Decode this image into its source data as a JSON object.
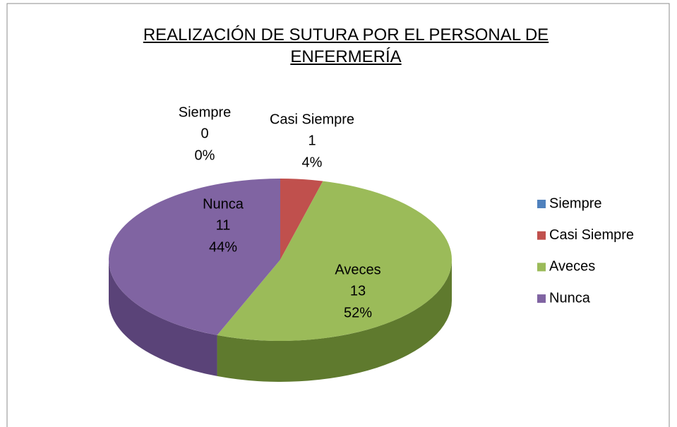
{
  "chart_data": {
    "type": "pie",
    "title": "REALIZACIÓN DE SUTURA POR EL PERSONAL DE ENFERMERÍA",
    "categories": [
      "Siempre",
      "Casi Siempre",
      "Aveces",
      "Nunca"
    ],
    "values": [
      0,
      1,
      13,
      11
    ],
    "percent_labels": [
      "0%",
      "4%",
      "52%",
      "44%"
    ],
    "colors": [
      "#4f81bd",
      "#c0504d",
      "#9bbb59",
      "#8064a2"
    ],
    "side_colors": [
      "#3a6190",
      "#8f3b39",
      "#5f7a2e",
      "#5a4378"
    ],
    "legend": "right"
  }
}
